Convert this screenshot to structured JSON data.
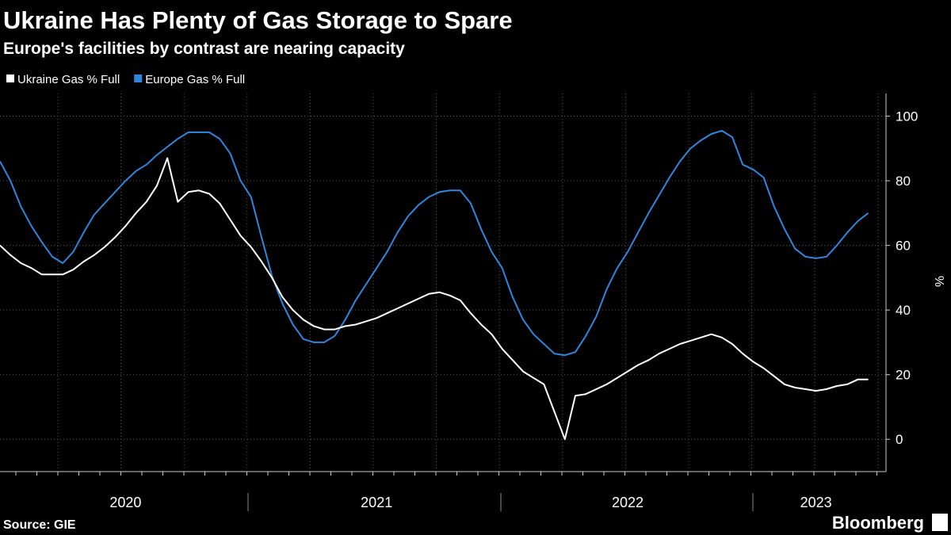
{
  "chart_data": {
    "type": "line",
    "title": "Ukraine Has Plenty of Gas Storage to Spare",
    "subtitle": "Europe's facilities by contrast are nearing capacity",
    "y_label": "%",
    "source": "Source: GIE",
    "brand": "Bloomberg",
    "categories": [
      null,
      null,
      null,
      null,
      null,
      null,
      null,
      null,
      null,
      null,
      null,
      null,
      "2020",
      null,
      null,
      null,
      null,
      null,
      null,
      null,
      null,
      null,
      null,
      null,
      null,
      null,
      null,
      null,
      null,
      null,
      null,
      null,
      null,
      null,
      null,
      null,
      "2021",
      null,
      null,
      null,
      null,
      null,
      null,
      null,
      null,
      null,
      null,
      null,
      null,
      null,
      null,
      null,
      null,
      null,
      null,
      null,
      null,
      null,
      null,
      null,
      "2022",
      null,
      null,
      null,
      null,
      null,
      null,
      null,
      null,
      null,
      null,
      null,
      null,
      null,
      null,
      null,
      null,
      null,
      "2023",
      null,
      null,
      null,
      null,
      null
    ],
    "series": [
      {
        "name": "Ukraine Gas % Full",
        "color": "#ffffff",
        "values": [
          60,
          57,
          54.5,
          53,
          51,
          51,
          51,
          52.5,
          55,
          57,
          59.5,
          62.5,
          66,
          70,
          73.5,
          78.5,
          87,
          73.5,
          76.5,
          77,
          76,
          73,
          68,
          63,
          59.5,
          55,
          50,
          44,
          40,
          37,
          35,
          34,
          34,
          35,
          35.5,
          36.5,
          37.5,
          39,
          40.5,
          42,
          43.5,
          45,
          45.5,
          44.5,
          43,
          39,
          35.5,
          32.5,
          28,
          24.5,
          21,
          19,
          17,
          8.5,
          0,
          13.5,
          14,
          15.5,
          17,
          19,
          21,
          23,
          24.5,
          26.5,
          28,
          29.5,
          30.5,
          31.5,
          32.5,
          31.5,
          29.5,
          26.5,
          24,
          22,
          19.5,
          17,
          16,
          15.5,
          15,
          15.5,
          16.5,
          17,
          18.5,
          18.5
        ]
      },
      {
        "name": "Europe Gas % Full",
        "color": "#2e86de",
        "values": [
          86,
          80,
          72,
          66,
          61,
          56.5,
          54.5,
          58,
          64,
          69.5,
          73,
          76.5,
          80,
          83,
          85,
          88,
          90.5,
          93,
          95,
          95,
          95,
          93,
          88.5,
          80,
          75,
          62.5,
          50.5,
          42,
          35.5,
          31,
          30,
          30,
          32,
          37,
          43,
          48,
          53,
          58,
          64,
          69,
          72.5,
          75,
          76.5,
          77,
          77,
          73,
          65,
          58,
          53,
          44,
          37,
          32.5,
          29.5,
          26.5,
          26,
          27,
          32,
          38,
          46.5,
          53,
          58,
          64,
          70,
          75.5,
          81,
          86,
          90,
          92.5,
          94.5,
          95.5,
          93.5,
          85,
          83.5,
          81,
          72,
          65,
          59,
          56.5,
          56,
          56.5,
          60,
          64,
          67.5,
          70
        ]
      }
    ],
    "ylim": [
      -10,
      107
    ],
    "yticks": [
      0,
      20,
      40,
      60,
      80,
      100
    ],
    "grid": true
  }
}
